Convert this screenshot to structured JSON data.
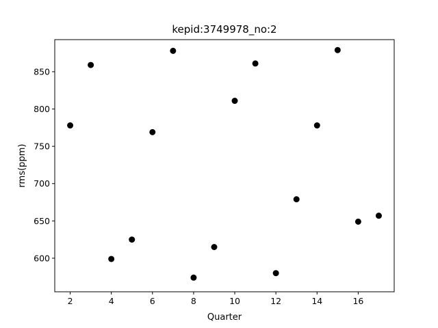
{
  "chart_data": {
    "type": "scatter",
    "title": "kepid:3749978_no:2",
    "xlabel": "Quarter",
    "ylabel": "rms(ppm)",
    "xlim": [
      1.25,
      17.75
    ],
    "ylim": [
      555,
      893
    ],
    "xticks": [
      2,
      4,
      6,
      8,
      10,
      12,
      14,
      16
    ],
    "yticks": [
      600,
      650,
      700,
      750,
      800,
      850
    ],
    "grid": false,
    "marker_color": "#000000",
    "points": [
      {
        "x": 2,
        "y": 778
      },
      {
        "x": 3,
        "y": 859
      },
      {
        "x": 4,
        "y": 599
      },
      {
        "x": 5,
        "y": 625
      },
      {
        "x": 6,
        "y": 769
      },
      {
        "x": 7,
        "y": 878
      },
      {
        "x": 8,
        "y": 574
      },
      {
        "x": 9,
        "y": 615
      },
      {
        "x": 10,
        "y": 811
      },
      {
        "x": 11,
        "y": 861
      },
      {
        "x": 12,
        "y": 580
      },
      {
        "x": 13,
        "y": 679
      },
      {
        "x": 14,
        "y": 778
      },
      {
        "x": 15,
        "y": 879
      },
      {
        "x": 16,
        "y": 649
      },
      {
        "x": 17,
        "y": 657
      }
    ]
  }
}
